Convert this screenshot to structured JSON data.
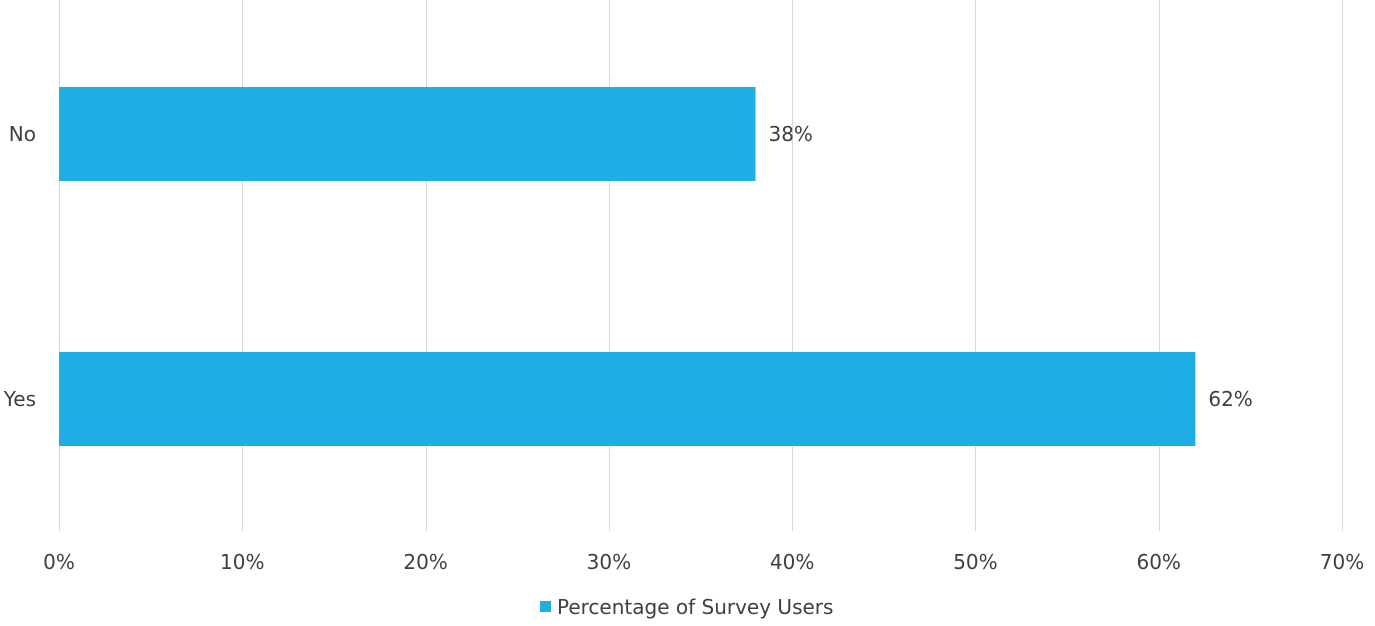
{
  "chart_data": {
    "type": "bar",
    "orientation": "horizontal",
    "categories": [
      "No",
      "Yes"
    ],
    "series": [
      {
        "name": "Percentage of Survey Users",
        "values": [
          38,
          62
        ],
        "color": "#1fade3"
      }
    ],
    "data_labels": [
      "38%",
      "62%"
    ],
    "xlim": [
      0,
      70
    ],
    "x_ticks": [
      0,
      10,
      20,
      30,
      40,
      50,
      60,
      70
    ],
    "x_tick_labels": [
      "0%",
      "10%",
      "20%",
      "30%",
      "40%",
      "50%",
      "60%",
      "70%"
    ],
    "grid": true,
    "legend_position": "bottom",
    "title": "",
    "xlabel": "",
    "ylabel": ""
  }
}
